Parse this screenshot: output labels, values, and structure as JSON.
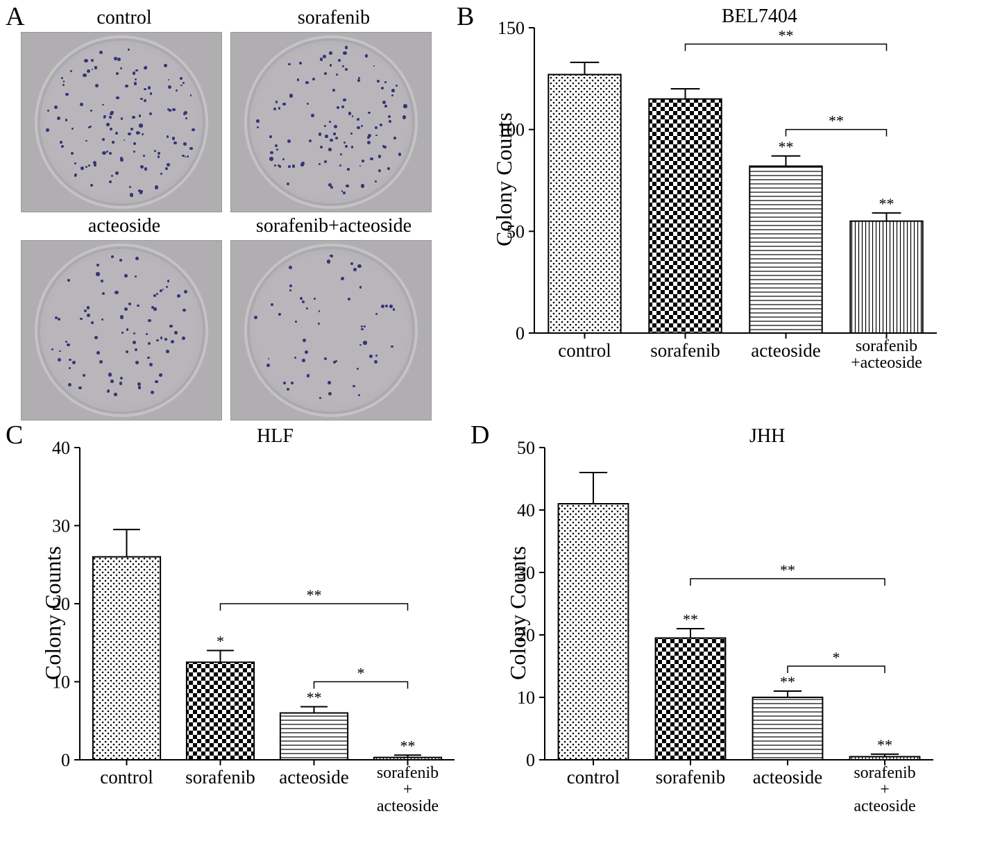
{
  "panelA": {
    "label": "A",
    "dishes": [
      {
        "name": "control",
        "colonies": 125
      },
      {
        "name": "sorafenib",
        "colonies": 110
      },
      {
        "name": "acteoside",
        "colonies": 80
      },
      {
        "name": "sorafenib+acteoside",
        "colonies": 55
      }
    ],
    "colony_color": "#3a3278",
    "dish_bg": "#b0aeb0"
  },
  "panelB": {
    "label": "B",
    "title": "BEL7404",
    "ylabel": "Colony Counts",
    "ylim": [
      0,
      150
    ],
    "ytick_step": 50,
    "categories": [
      "control",
      "sorafenib",
      "acteoside",
      "sorafenib\n+acteoside"
    ],
    "values": [
      127,
      115,
      82,
      55
    ],
    "errors": [
      6,
      5,
      5,
      4
    ],
    "patterns": [
      "dots",
      "checker",
      "hstripe",
      "vstripe"
    ],
    "sig_above_bar": [
      "",
      "",
      "**",
      "**"
    ],
    "sig_brackets": [
      {
        "from": 1,
        "to": 3,
        "y": 142,
        "label": "**"
      },
      {
        "from": 2,
        "to": 3,
        "y": 100,
        "label": "**"
      }
    ],
    "label_fontsize": 27,
    "title_fontsize": 28,
    "ylabel_fontsize": 32,
    "bar_width": 0.72
  },
  "panelC": {
    "label": "C",
    "title": "HLF",
    "ylabel": "Colony Counts",
    "ylim": [
      0,
      40
    ],
    "ytick_step": 10,
    "categories": [
      "control",
      "sorafenib",
      "acteoside",
      "sorafenib\n+\nacteoside"
    ],
    "values": [
      26,
      12.5,
      6,
      0.3
    ],
    "errors": [
      3.5,
      1.5,
      0.8,
      0.3
    ],
    "patterns": [
      "dots",
      "checker",
      "hstripe",
      "vstripe"
    ],
    "sig_above_bar": [
      "",
      "*",
      "**",
      "**"
    ],
    "sig_brackets": [
      {
        "from": 1,
        "to": 3,
        "y": 20,
        "label": "**"
      },
      {
        "from": 2,
        "to": 3,
        "y": 10,
        "label": "*"
      }
    ],
    "label_fontsize": 27,
    "title_fontsize": 28,
    "ylabel_fontsize": 32,
    "bar_width": 0.72
  },
  "panelD": {
    "label": "D",
    "title": "JHH",
    "ylabel": "Colony Counts",
    "ylim": [
      0,
      50
    ],
    "ytick_step": 10,
    "categories": [
      "control",
      "sorafenib",
      "acteoside",
      "sorafenib\n+\nacteoside"
    ],
    "values": [
      41,
      19.5,
      10,
      0.5
    ],
    "errors": [
      5,
      1.5,
      1,
      0.4
    ],
    "patterns": [
      "dots",
      "checker",
      "hstripe",
      "vstripe"
    ],
    "sig_above_bar": [
      "",
      "**",
      "**",
      "**"
    ],
    "sig_brackets": [
      {
        "from": 1,
        "to": 3,
        "y": 29,
        "label": "**"
      },
      {
        "from": 2,
        "to": 3,
        "y": 15,
        "label": "*"
      }
    ],
    "label_fontsize": 27,
    "title_fontsize": 28,
    "ylabel_fontsize": 32,
    "bar_width": 0.72
  },
  "colors": {
    "bar_fill": "#ffffff",
    "bar_stroke": "#000000",
    "axis": "#000000",
    "background": "#ffffff"
  }
}
